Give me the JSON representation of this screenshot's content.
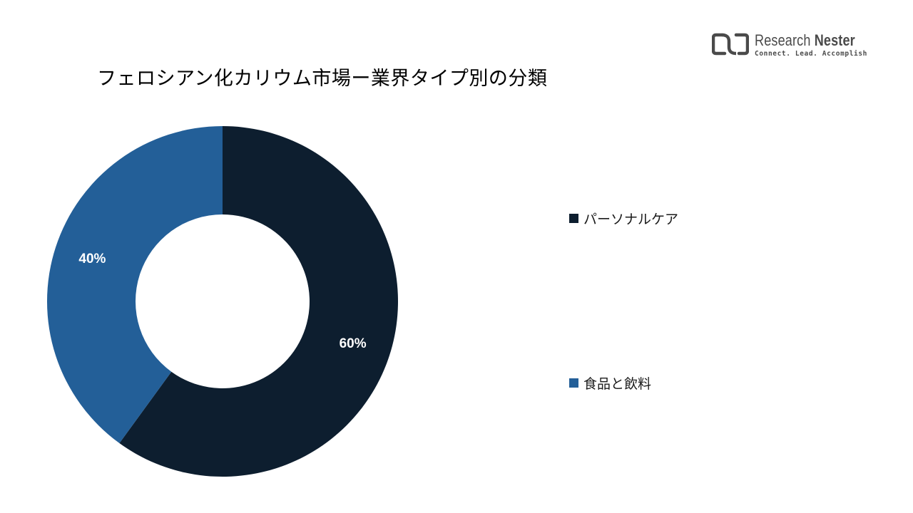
{
  "header": {
    "title": "フェロシアン化カリウム市場ー業界タイプ別の分類"
  },
  "logo": {
    "name_regular": "Research",
    "name_bold": "Nester",
    "tagline": "Connect. Lead. Accomplish",
    "icon": "research-nester-logo-icon"
  },
  "colors": {
    "series_dark": "#0d1e2f",
    "series_blue": "#235f98",
    "label_text": "#ffffff"
  },
  "chart_data": {
    "type": "pie",
    "variant": "donut",
    "title": "",
    "categories": [
      "パーソナルケア",
      "食品と飲料"
    ],
    "values": [
      60,
      40
    ],
    "data_labels": [
      "60%",
      "40%"
    ],
    "colors": [
      "#0d1e2f",
      "#235f98"
    ],
    "start_angle_deg": 0,
    "direction": "clockwise",
    "legend_position": "right",
    "legend": [
      {
        "label": "パーソナルケア",
        "color": "#0d1e2f"
      },
      {
        "label": "食品と飲料",
        "color": "#235f98"
      }
    ]
  }
}
